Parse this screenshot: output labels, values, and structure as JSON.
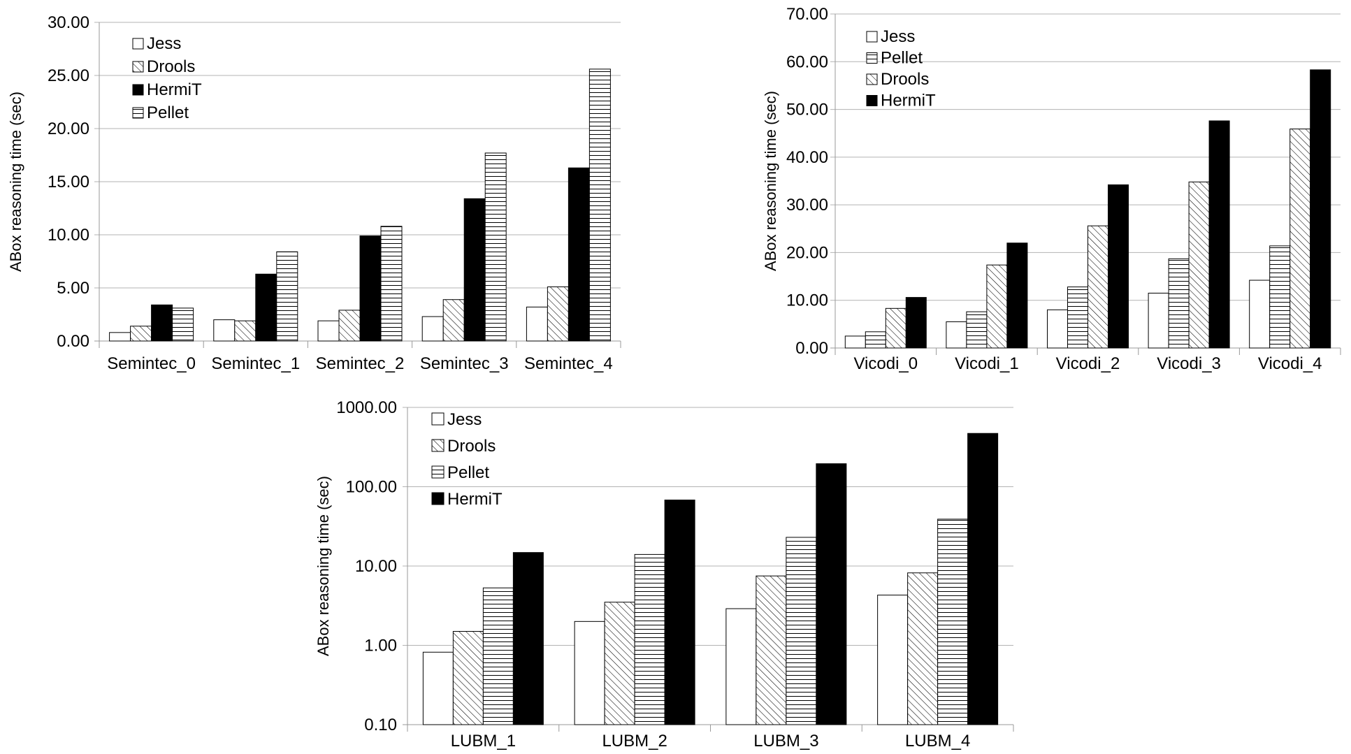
{
  "chart_data": [
    {
      "type": "bar",
      "categories": [
        "Semintec_0",
        "Semintec_1",
        "Semintec_2",
        "Semintec_3",
        "Semintec_4"
      ],
      "ylabel": "ABox reasoning time (sec)",
      "ylim": [
        0,
        30
      ],
      "yticks": [
        0,
        5,
        10,
        15,
        20,
        25,
        30
      ],
      "ytick_labels": [
        "0.00",
        "5.00",
        "10.00",
        "15.00",
        "20.00",
        "25.00",
        "30.00"
      ],
      "yscale": "linear",
      "grid": true,
      "legend_position": "top-left",
      "series": [
        {
          "name": "Jess",
          "pattern": "blank",
          "values": [
            0.8,
            2.0,
            1.9,
            2.3,
            3.2
          ]
        },
        {
          "name": "Drools",
          "pattern": "diagonal",
          "values": [
            1.4,
            1.9,
            2.9,
            3.9,
            5.1
          ]
        },
        {
          "name": "HermiT",
          "pattern": "solid",
          "values": [
            3.4,
            6.3,
            9.9,
            13.4,
            16.3
          ]
        },
        {
          "name": "Pellet",
          "pattern": "horizontal",
          "values": [
            3.1,
            8.4,
            10.8,
            17.7,
            25.6
          ]
        }
      ]
    },
    {
      "type": "bar",
      "categories": [
        "Vicodi_0",
        "Vicodi_1",
        "Vicodi_2",
        "Vicodi_3",
        "Vicodi_4"
      ],
      "ylabel": "ABox reasoning time (sec)",
      "ylim": [
        0,
        70
      ],
      "yticks": [
        0,
        10,
        20,
        30,
        40,
        50,
        60,
        70
      ],
      "ytick_labels": [
        "0.00",
        "10.00",
        "20.00",
        "30.00",
        "40.00",
        "50.00",
        "60.00",
        "70.00"
      ],
      "yscale": "linear",
      "grid": true,
      "legend_position": "top-left",
      "series": [
        {
          "name": "Jess",
          "pattern": "blank",
          "values": [
            2.5,
            5.5,
            8.0,
            11.5,
            14.2
          ]
        },
        {
          "name": "Pellet",
          "pattern": "horizontal",
          "values": [
            3.4,
            7.6,
            12.8,
            18.7,
            21.4
          ]
        },
        {
          "name": "Drools",
          "pattern": "diagonal",
          "values": [
            8.3,
            17.4,
            25.6,
            34.8,
            45.9
          ]
        },
        {
          "name": "HermiT",
          "pattern": "solid",
          "values": [
            10.6,
            22.0,
            34.2,
            47.6,
            58.3
          ]
        }
      ]
    },
    {
      "type": "bar",
      "categories": [
        "LUBM_1",
        "LUBM_2",
        "LUBM_3",
        "LUBM_4"
      ],
      "ylabel": "ABox reasoning time (sec)",
      "ylim": [
        0.1,
        1000
      ],
      "yticks": [
        0.1,
        1,
        10,
        100,
        1000
      ],
      "ytick_labels": [
        "0.10",
        "1.00",
        "10.00",
        "100.00",
        "1000.00"
      ],
      "yscale": "log",
      "grid": true,
      "legend_position": "top-left",
      "series": [
        {
          "name": "Jess",
          "pattern": "blank",
          "values": [
            0.82,
            2.0,
            2.9,
            4.3
          ]
        },
        {
          "name": "Drools",
          "pattern": "diagonal",
          "values": [
            1.5,
            3.5,
            7.5,
            8.2
          ]
        },
        {
          "name": "Pellet",
          "pattern": "horizontal",
          "values": [
            5.3,
            14.0,
            23.0,
            39.0
          ]
        },
        {
          "name": "HermiT",
          "pattern": "solid",
          "values": [
            14.8,
            68.0,
            195.0,
            470.0
          ]
        }
      ]
    }
  ]
}
